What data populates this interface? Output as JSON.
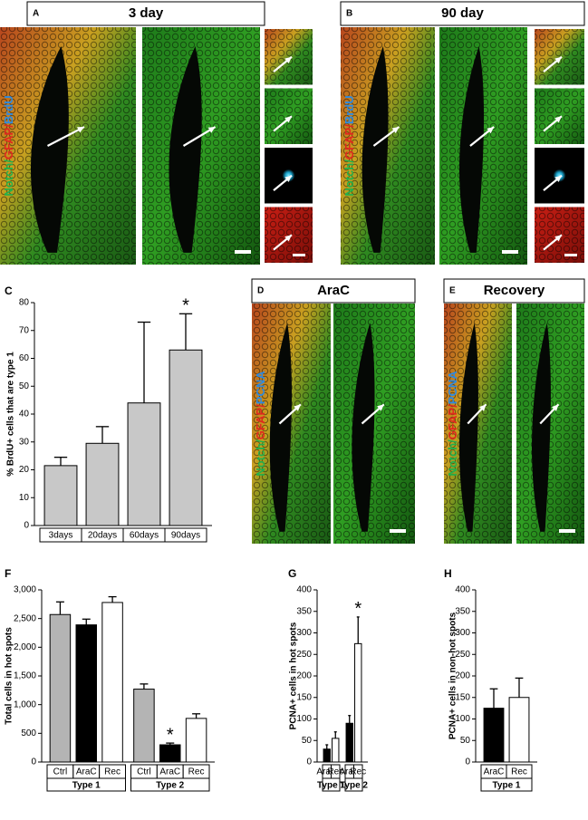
{
  "image_panels": [
    {
      "letter": "A",
      "title": "3 day",
      "label": [
        "Notch/",
        "GFAP/",
        "BrdU"
      ]
    },
    {
      "letter": "B",
      "title": "90 day",
      "label": [
        "Notch/",
        "GFAP/",
        "BrdU"
      ]
    },
    {
      "letter": "D",
      "title": "AraC",
      "label": [
        "Notch/",
        "GFAP/",
        "PCNA"
      ]
    },
    {
      "letter": "E",
      "title": "Recovery",
      "label": [
        "Notch/",
        "GFAP/",
        "PCNA"
      ]
    }
  ],
  "chart_data": [
    {
      "type": "bar",
      "letter": "C",
      "ylabel": "% BrdU+ cells that are type 1",
      "ylim": [
        0,
        80
      ],
      "yticks": [
        0,
        10,
        20,
        30,
        40,
        50,
        60,
        70,
        80
      ],
      "groups": [
        {
          "categories": [
            "3days",
            "20days",
            "60days",
            "90days"
          ],
          "values": [
            21.5,
            29.5,
            44,
            63
          ],
          "errors": [
            3,
            6,
            29,
            13
          ],
          "colors": [
            "#c8c8c8",
            "#c8c8c8",
            "#c8c8c8",
            "#c8c8c8"
          ]
        }
      ],
      "annotations": [
        {
          "text": "*",
          "group": 0,
          "category": "90days"
        }
      ]
    },
    {
      "type": "bar",
      "letter": "F",
      "ylabel": "Total cells in hot spots",
      "ylim": [
        0,
        3000
      ],
      "yticks": [
        0,
        500,
        {
          "value": 1000,
          "label": "1,000"
        },
        {
          "value": 1500,
          "label": "1,500"
        },
        {
          "value": 2000,
          "label": "2,000"
        },
        {
          "value": 2500,
          "label": "2,500"
        },
        {
          "value": 3000,
          "label": "3,000"
        }
      ],
      "groups": [
        {
          "name": "Type 1",
          "categories": [
            "Ctrl",
            "AraC",
            "Rec"
          ],
          "values": [
            2570,
            2390,
            2780
          ],
          "errors": [
            220,
            100,
            100
          ],
          "colors": [
            "#b4b4b4",
            "#000000",
            "#ffffff"
          ]
        },
        {
          "name": "Type 2",
          "categories": [
            "Ctrl",
            "AraC",
            "Rec"
          ],
          "values": [
            1270,
            300,
            760
          ],
          "errors": [
            90,
            30,
            80
          ],
          "colors": [
            "#b4b4b4",
            "#000000",
            "#ffffff"
          ]
        }
      ],
      "annotations": [
        {
          "text": "*",
          "group": 1,
          "category": "AraC"
        }
      ]
    },
    {
      "type": "bar",
      "letter": "G",
      "ylabel": "PCNA+ cells in hot spots",
      "ylim": [
        0,
        400
      ],
      "yticks": [
        0,
        50,
        100,
        150,
        200,
        250,
        300,
        350,
        400
      ],
      "groups": [
        {
          "name": "Type 1",
          "categories": [
            "AraC",
            "Rec"
          ],
          "values": [
            30,
            55
          ],
          "errors": [
            10,
            15
          ],
          "colors": [
            "#000000",
            "#ffffff"
          ]
        },
        {
          "name": "Type 2",
          "categories": [
            "AraC",
            "Rec"
          ],
          "values": [
            90,
            275
          ],
          "errors": [
            18,
            62
          ],
          "colors": [
            "#000000",
            "#ffffff"
          ]
        }
      ],
      "annotations": [
        {
          "text": "*",
          "group": 1,
          "category": "Rec"
        }
      ]
    },
    {
      "type": "bar",
      "letter": "H",
      "ylabel": "PCNA+ cells in non-hot spots",
      "ylim": [
        0,
        400
      ],
      "yticks": [
        0,
        50,
        100,
        150,
        200,
        250,
        300,
        350,
        400
      ],
      "groups": [
        {
          "name": "Type 1",
          "categories": [
            "AraC",
            "Rec"
          ],
          "values": [
            125,
            150
          ],
          "errors": [
            45,
            45
          ],
          "colors": [
            "#000000",
            "#ffffff"
          ]
        }
      ],
      "annotations": []
    }
  ]
}
